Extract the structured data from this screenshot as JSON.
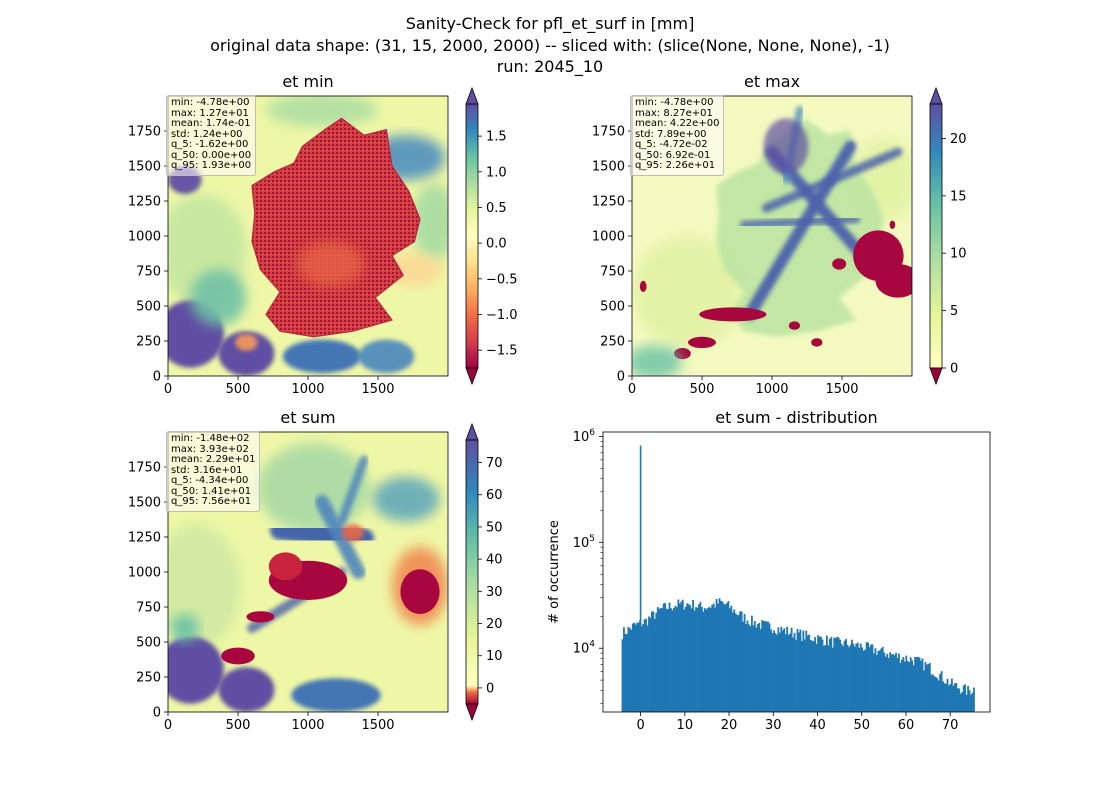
{
  "figure": {
    "title_lines": [
      "Sanity-Check for pfl_et_surf in [mm]",
      "original data shape: (31, 15, 2000, 2000) -- sliced with: (slice(None, None, None), -1)",
      "run: 2045_10"
    ]
  },
  "chart_data": [
    {
      "type": "heatmap",
      "title": "et min",
      "x_ticks": [
        0,
        500,
        1000,
        1500
      ],
      "y_ticks": [
        0,
        250,
        500,
        750,
        1000,
        1250,
        1500,
        1750
      ],
      "xlim": [
        0,
        2000
      ],
      "ylim": [
        0,
        2000
      ],
      "colormap": "Spectral",
      "colorbar": {
        "range": [
          -1.75,
          1.95
        ],
        "ticks": [
          -1.5,
          -1.0,
          -0.5,
          0.0,
          0.5,
          1.0,
          1.5
        ],
        "extend": "both"
      },
      "stats": [
        "min: -4.78e+00",
        "max: 1.27e+01",
        "mean: 1.74e-01",
        "std: 1.24e+00",
        "q_5: -1.62e+00",
        "q_50: 0.00e+00",
        "q_95: 1.93e+00"
      ]
    },
    {
      "type": "heatmap",
      "title": "et max",
      "x_ticks": [
        0,
        500,
        1000,
        1500
      ],
      "y_ticks": [
        0,
        250,
        500,
        750,
        1000,
        1250,
        1500,
        1750
      ],
      "xlim": [
        0,
        2000
      ],
      "ylim": [
        0,
        2000
      ],
      "colormap": "Spectral",
      "colorbar": {
        "range": [
          0,
          23
        ],
        "ticks": [
          0,
          5,
          10,
          15,
          20
        ],
        "extend": "both"
      },
      "stats": [
        "min: -4.78e+00",
        "max: 8.27e+01",
        "mean: 4.22e+00",
        "std: 7.89e+00",
        "q_5: -4.72e-02",
        "q_50: 6.92e-01",
        "q_95: 2.26e+01"
      ]
    },
    {
      "type": "heatmap",
      "title": "et sum",
      "x_ticks": [
        0,
        500,
        1000,
        1500
      ],
      "y_ticks": [
        0,
        250,
        500,
        750,
        1000,
        1250,
        1500,
        1750
      ],
      "xlim": [
        0,
        2000
      ],
      "ylim": [
        0,
        2000
      ],
      "colormap": "Spectral",
      "colorbar": {
        "range": [
          -5,
          77
        ],
        "ticks": [
          0,
          10,
          20,
          30,
          40,
          50,
          60,
          70
        ],
        "extend": "both"
      },
      "stats": [
        "min: -1.48e+02",
        "max: 3.93e+02",
        "mean: 2.29e+01",
        "std: 3.16e+01",
        "q_5: -4.34e+00",
        "q_50: 1.41e+01",
        "q_95: 7.56e+01"
      ]
    },
    {
      "type": "bar",
      "title": "et sum - distribution",
      "ylabel": "# of occurrence",
      "yscale": "log",
      "xlim": [
        -8.5,
        79
      ],
      "ylim": [
        2500,
        1100000
      ],
      "x_ticks": [
        0,
        10,
        20,
        30,
        40,
        50,
        60,
        70
      ],
      "y_ticks": [
        {
          "value": 10000,
          "label": "10^4"
        },
        {
          "value": 100000,
          "label": "10^5"
        },
        {
          "value": 1000000,
          "label": "10^6"
        }
      ],
      "bar_color": "#1f77b4",
      "spike": {
        "x": 0,
        "value": 820000
      },
      "profile": [
        [
          -4.3,
          14000
        ],
        [
          -3,
          15000
        ],
        [
          -1.5,
          16500
        ],
        [
          -0.5,
          17000
        ],
        [
          1,
          18000
        ],
        [
          3,
          21000
        ],
        [
          5,
          24000
        ],
        [
          8,
          26000
        ],
        [
          10,
          26500
        ],
        [
          12,
          26000
        ],
        [
          14,
          24500
        ],
        [
          16,
          25500
        ],
        [
          18,
          27500
        ],
        [
          20,
          25000
        ],
        [
          22,
          21500
        ],
        [
          24,
          19000
        ],
        [
          26,
          17500
        ],
        [
          28,
          16500
        ],
        [
          30,
          16000
        ],
        [
          32,
          15000
        ],
        [
          35,
          14000
        ],
        [
          38,
          13000
        ],
        [
          40,
          12500
        ],
        [
          44,
          11500
        ],
        [
          48,
          11000
        ],
        [
          50,
          10500
        ],
        [
          54,
          9500
        ],
        [
          58,
          8500
        ],
        [
          62,
          7800
        ],
        [
          65,
          6800
        ],
        [
          68,
          5500
        ],
        [
          70,
          4700
        ],
        [
          72,
          4300
        ],
        [
          74,
          4000
        ],
        [
          75.5,
          4200
        ]
      ]
    }
  ]
}
